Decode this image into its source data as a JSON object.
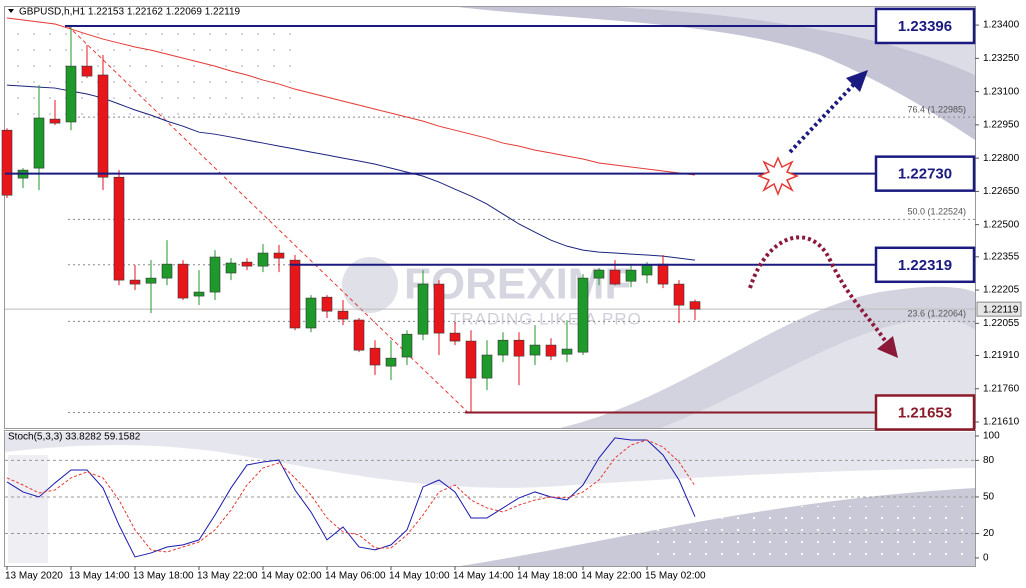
{
  "watermark": {
    "brand": "FOREXIMF",
    "slogan": "TRADING LIKE A PRO"
  },
  "chart_data": [
    {
      "type": "candlestick",
      "title": "GBPUSD,h,H1  1.22153 1.22162 1.22069 1.22119",
      "categories": [
        "13 May 2020",
        null,
        null,
        null,
        "13 May 14:00",
        null,
        null,
        null,
        "13 May 18:00",
        null,
        null,
        null,
        "13 May 22:00",
        null,
        null,
        null,
        "14 May 02:00",
        null,
        null,
        null,
        "14 May 06:00",
        null,
        null,
        null,
        "14 May 10:00",
        null,
        null,
        null,
        "14 May 14:00",
        null,
        null,
        null,
        "14 May 18:00",
        null,
        null,
        null,
        "14 May 22:00",
        null,
        null,
        null,
        "15 May 02:00",
        null,
        null,
        null
      ],
      "open": [
        1.22926,
        1.2271,
        1.22755,
        1.22976,
        1.22963,
        1.23215,
        1.23175,
        1.22714,
        1.2225,
        1.22236,
        1.22259,
        1.22322,
        1.22178,
        1.22196,
        1.22282,
        1.22331,
        1.22313,
        1.22372,
        1.2234,
        1.22034,
        1.22173,
        1.2211,
        1.2207,
        1.21943,
        1.21862,
        1.21903,
        1.22006,
        1.22232,
        1.22011,
        1.21975,
        1.21808,
        1.21912,
        1.21979,
        1.21912,
        1.21957,
        1.21916,
        1.21925,
        1.22259,
        1.22295,
        1.22245,
        1.22273,
        1.22322,
        1.22232,
        1.22153
      ],
      "high": [
        1.22935,
        1.22755,
        1.23129,
        1.23062,
        1.23396,
        1.2331,
        1.23265,
        1.22746,
        1.22318,
        1.2234,
        1.2243,
        1.2234,
        1.22295,
        1.22385,
        1.22349,
        1.22349,
        1.22412,
        1.22408,
        1.22363,
        1.22182,
        1.22182,
        1.2216,
        1.22079,
        1.21979,
        1.21979,
        1.22024,
        1.22295,
        1.2225,
        1.22061,
        1.22024,
        1.21979,
        1.22015,
        1.22015,
        1.22047,
        1.21988,
        1.22069,
        1.22277,
        1.22304,
        1.2234,
        1.22318,
        1.22331,
        1.22363,
        1.2225,
        1.22162
      ],
      "low": [
        1.2262,
        1.22665,
        1.22656,
        1.22949,
        1.22926,
        1.23161,
        1.22656,
        1.22227,
        1.22205,
        1.22101,
        1.22227,
        1.2216,
        1.22137,
        1.2216,
        1.2225,
        1.22295,
        1.22286,
        1.22286,
        1.22024,
        1.22015,
        1.22079,
        1.22047,
        1.21925,
        1.21822,
        1.21799,
        1.21867,
        1.21979,
        1.21912,
        1.21957,
        1.21653,
        1.21754,
        1.2188,
        1.21776,
        1.21867,
        1.21889,
        1.2188,
        1.21912,
        1.22227,
        1.22227,
        1.22218,
        1.22236,
        1.22214,
        1.22056,
        1.22069
      ],
      "close": [
        1.22633,
        1.22746,
        1.22981,
        1.22958,
        1.23215,
        1.2317,
        1.22714,
        1.2225,
        1.22232,
        1.22259,
        1.22322,
        1.22169,
        1.22196,
        1.22354,
        1.22327,
        1.22313,
        1.22372,
        1.22349,
        1.22034,
        1.22169,
        1.2211,
        1.22074,
        1.21934,
        1.21867,
        1.21898,
        1.22006,
        1.22232,
        1.22011,
        1.21975,
        1.21808,
        1.21912,
        1.21979,
        1.21907,
        1.21957,
        1.21907,
        1.21939,
        1.22259,
        1.22295,
        1.22232,
        1.22295,
        1.22318,
        1.22232,
        1.22137,
        1.22119
      ],
      "up_color": "#1f9a2a",
      "down_color": "#e8161b",
      "lines": [
        {
          "color": "#e53935",
          "values": [
            1.23432,
            1.23423,
            1.23414,
            1.23405,
            1.23382,
            1.23359,
            1.23337,
            1.23319,
            1.23301,
            1.23287,
            1.23269,
            1.23251,
            1.23233,
            1.23215,
            1.23193,
            1.23175,
            1.23152,
            1.23134,
            1.23111,
            1.23093,
            1.23075,
            1.23057,
            1.23039,
            1.23021,
            1.23003,
            1.22985,
            1.22967,
            1.22944,
            1.22926,
            1.22908,
            1.2289,
            1.22868,
            1.22854,
            1.22836,
            1.22823,
            1.22809,
            1.22796,
            1.22778,
            1.22769,
            1.2276,
            1.22751,
            1.22742,
            1.22733,
            1.22724
          ]
        },
        {
          "color": "#1a237e",
          "values": [
            1.23129,
            1.23125,
            1.2312,
            1.23116,
            1.23102,
            1.23089,
            1.23071,
            1.23044,
            1.23017,
            1.22994,
            1.22967,
            1.22944,
            1.22917,
            1.22908,
            1.22895,
            1.22881,
            1.22868,
            1.22854,
            1.22841,
            1.22827,
            1.22814,
            1.228,
            1.22787,
            1.22773,
            1.22755,
            1.22737,
            1.22719,
            1.22692,
            1.2266,
            1.22629,
            1.22593,
            1.22548,
            1.22503,
            1.22466,
            1.2243,
            1.22403,
            1.22385,
            1.22376,
            1.22372,
            1.22367,
            1.22363,
            1.22358,
            1.22349,
            1.2234
          ]
        }
      ],
      "levels": {
        "values": [
          1.23396,
          1.2273,
          1.22319,
          1.21653
        ],
        "value_labels": [
          "1.23396",
          "1.22730",
          "1.22319",
          "1.21653"
        ],
        "colors": [
          "#1a1a80",
          "#1a1a80",
          "#1a1a80",
          "#8b1a2b"
        ]
      },
      "fib_levels": [
        {
          "value": 1.22985,
          "label": "76.4 (1.22985)"
        },
        {
          "value": 1.22524,
          "label": "50.0 (1.22524)"
        },
        {
          "value": 1.22064,
          "label": "23.6 (1.22064)"
        }
      ],
      "bid": 1.22119,
      "ylim": [
        1.21583,
        1.2345
      ],
      "yticks": [
        {
          "value": 1.234,
          "label": "1.23400"
        },
        {
          "value": 1.2325,
          "label": "1.23250"
        },
        {
          "value": 1.231,
          "label": "1.23100"
        },
        {
          "value": 1.2295,
          "label": "1.22950"
        },
        {
          "value": 1.228,
          "label": "1.22800"
        },
        {
          "value": 1.2265,
          "label": "1.22650"
        },
        {
          "value": 1.225,
          "label": "1.22500"
        },
        1.22355,
        1.22205,
        1.22055,
        {
          "value": 1.2191,
          "label": "1.21910"
        },
        {
          "value": 1.2176,
          "label": "1.21760"
        },
        {
          "value": 1.2161,
          "label": "1.21610"
        }
      ]
    },
    {
      "type": "line",
      "title": "Stoch(5,3,3) 33.8282 59.1582",
      "series": [
        {
          "color": "#1a1ab0",
          "values": [
            62.3,
            54.1,
            50.0,
            61.5,
            72.1,
            72.1,
            57.4,
            27.0,
            0.8,
            4.1,
            9.0,
            10.7,
            14.8,
            35.2,
            57.4,
            76.2,
            78.7,
            80.3,
            55.7,
            37.7,
            14.8,
            25.4,
            9.0,
            6.6,
            10.7,
            23.0,
            58.2,
            63.9,
            54.1,
            32.8,
            32.8,
            41.0,
            49.2,
            54.1,
            50.0,
            47.5,
            59.8,
            82.0,
            98.4,
            96.7,
            96.7,
            84.4,
            63.9,
            33.8282
          ]
        },
        {
          "color": "#e53935",
          "dashed": true,
          "values": [
            65.6,
            59.8,
            53.3,
            55.7,
            65.6,
            70.5,
            65.6,
            47.5,
            23.0,
            6.6,
            4.9,
            9.0,
            13.1,
            23.0,
            39.3,
            59.8,
            73.8,
            77.9,
            65.6,
            51.6,
            32.8,
            21.3,
            18.9,
            8.2,
            8.2,
            18.9,
            35.2,
            54.1,
            59.8,
            47.5,
            41.0,
            37.7,
            43.4,
            47.5,
            50.0,
            49.2,
            54.1,
            63.9,
            82.0,
            92.6,
            96.7,
            91.0,
            78.7,
            59.1582
          ]
        }
      ],
      "levels": [
        80,
        50,
        20
      ],
      "ylim": [
        -6.6,
        104.9
      ],
      "yticks": [
        100,
        80,
        50,
        20,
        0
      ]
    }
  ]
}
